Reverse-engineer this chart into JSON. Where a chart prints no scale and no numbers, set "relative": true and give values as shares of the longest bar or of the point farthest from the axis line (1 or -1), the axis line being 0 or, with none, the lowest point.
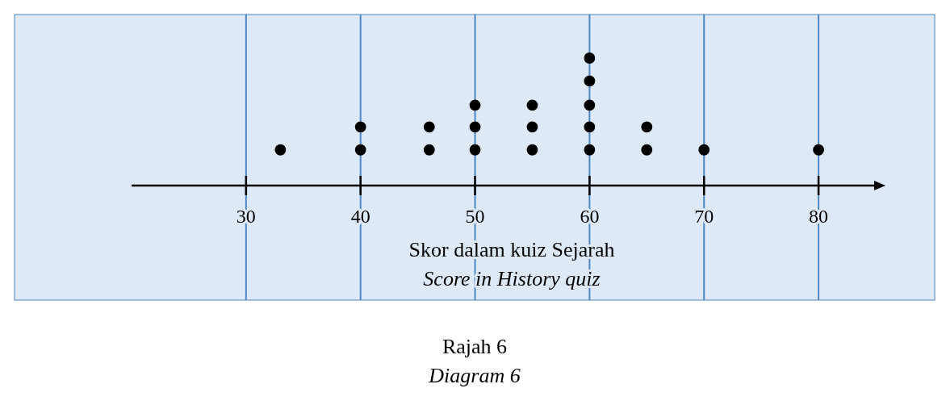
{
  "chart_data": {
    "type": "scatter",
    "x": [
      33,
      40,
      40,
      46,
      46,
      50,
      50,
      50,
      55,
      55,
      55,
      60,
      60,
      60,
      60,
      60,
      65,
      65,
      70,
      80
    ],
    "values": [
      0.28,
      0.28,
      0.46,
      0.28,
      0.46,
      0.28,
      0.46,
      0.63,
      0.28,
      0.46,
      0.63,
      0.28,
      0.46,
      0.63,
      0.82,
      1,
      0.28,
      0.46,
      0.28,
      0.28
    ],
    "relative": true,
    "color": "#000000",
    "marker": "circle",
    "xlim": [
      20,
      85
    ],
    "xticks": [
      30,
      40,
      50,
      60,
      70,
      80
    ],
    "tick_labels": "x",
    "grid": "x",
    "xlabel": "Skor dalam kuiz Sejarah\nScore in History quiz",
    "annotations": [
      "Rajah 6",
      "Diagram 6"
    ]
  }
}
